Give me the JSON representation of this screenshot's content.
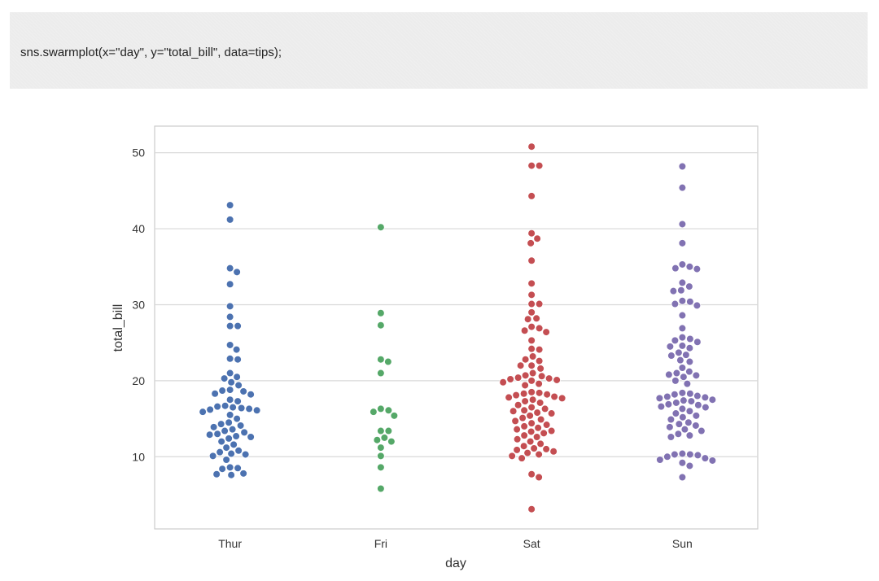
{
  "code": {
    "text": "sns.swarmplot(x=\"day\", y=\"total_bill\", data=tips);"
  },
  "colors": {
    "Thur": "#4c72b0",
    "Fri": "#55a868",
    "Sat": "#c44e52",
    "Sun": "#8172b2",
    "grid": "#d8d8d8",
    "frame": "#cccccc"
  },
  "chart_data": {
    "type": "scatter",
    "subtype": "swarm",
    "xlabel": "day",
    "ylabel": "total_bill",
    "categories": [
      "Thur",
      "Fri",
      "Sat",
      "Sun"
    ],
    "ylim": [
      0.5,
      53.5
    ],
    "yticks": [
      10,
      20,
      30,
      40,
      50
    ],
    "grid": true,
    "series": [
      {
        "category": "Thur",
        "values": [
          43.1,
          41.2,
          34.8,
          34.3,
          32.7,
          29.8,
          28.4,
          27.2,
          27.2,
          24.7,
          24.1,
          22.9,
          22.8,
          21.0,
          20.5,
          20.3,
          19.8,
          19.4,
          18.8,
          18.7,
          18.6,
          18.3,
          18.2,
          17.5,
          17.3,
          16.7,
          16.6,
          16.5,
          16.4,
          16.3,
          16.2,
          16.1,
          15.9,
          15.5,
          15.0,
          14.5,
          14.3,
          14.1,
          13.9,
          13.6,
          13.4,
          13.2,
          13.0,
          12.9,
          12.7,
          12.6,
          12.4,
          12.0,
          11.6,
          11.2,
          10.8,
          10.6,
          10.4,
          10.3,
          10.1,
          9.6,
          8.6,
          8.5,
          8.4,
          7.8,
          7.7,
          7.6
        ]
      },
      {
        "category": "Fri",
        "values": [
          40.2,
          28.9,
          27.3,
          22.8,
          22.5,
          21.0,
          16.3,
          16.1,
          15.9,
          15.4,
          13.4,
          13.4,
          12.5,
          12.2,
          12.0,
          11.2,
          10.1,
          8.6,
          5.8
        ]
      },
      {
        "category": "Sat",
        "values": [
          50.8,
          48.3,
          48.3,
          44.3,
          39.4,
          38.7,
          38.1,
          35.8,
          32.8,
          31.3,
          30.1,
          30.1,
          29.0,
          28.2,
          28.1,
          27.1,
          26.9,
          26.6,
          26.4,
          25.3,
          24.2,
          24.1,
          23.2,
          22.8,
          22.6,
          22.0,
          22.0,
          21.6,
          21.0,
          20.7,
          20.6,
          20.4,
          20.3,
          20.2,
          20.1,
          20.0,
          19.8,
          19.6,
          19.4,
          18.5,
          18.4,
          18.3,
          18.2,
          18.1,
          17.9,
          17.8,
          17.7,
          17.5,
          17.3,
          17.1,
          16.8,
          16.5,
          16.3,
          16.1,
          16.0,
          15.8,
          15.7,
          15.4,
          15.1,
          14.9,
          14.7,
          14.4,
          14.2,
          14.0,
          13.8,
          13.6,
          13.4,
          13.3,
          13.1,
          12.8,
          12.6,
          12.3,
          12.0,
          11.7,
          11.4,
          11.1,
          11.0,
          10.9,
          10.7,
          10.5,
          10.3,
          10.1,
          9.8,
          7.7,
          7.3,
          3.1
        ]
      },
      {
        "category": "Sun",
        "values": [
          48.2,
          45.4,
          40.6,
          38.1,
          35.3,
          35.0,
          34.8,
          34.7,
          32.9,
          32.4,
          31.9,
          31.8,
          30.5,
          30.4,
          30.1,
          29.9,
          28.6,
          26.9,
          25.7,
          25.5,
          25.3,
          25.1,
          24.6,
          24.5,
          24.3,
          23.7,
          23.4,
          23.3,
          22.7,
          22.5,
          21.7,
          21.2,
          21.0,
          20.8,
          20.7,
          20.5,
          20.0,
          19.6,
          18.4,
          18.3,
          18.2,
          18.0,
          17.9,
          17.8,
          17.7,
          17.5,
          17.4,
          17.3,
          17.1,
          16.9,
          16.8,
          16.6,
          16.5,
          16.3,
          16.0,
          15.7,
          15.4,
          15.2,
          14.9,
          14.5,
          14.3,
          14.1,
          13.9,
          13.6,
          13.4,
          13.0,
          12.8,
          12.6,
          10.4,
          10.3,
          10.3,
          10.2,
          10.0,
          9.8,
          9.6,
          9.5,
          9.2,
          8.8,
          7.3
        ]
      }
    ]
  }
}
